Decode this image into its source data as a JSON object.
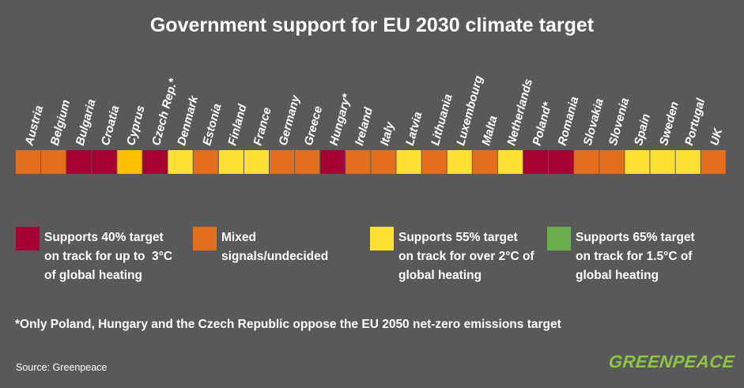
{
  "title": "Government support for EU 2030 climate target",
  "chart_data": {
    "type": "heatmap",
    "title": "Government support for EU 2030 climate target",
    "countries": [
      {
        "name": "Austria",
        "category": "mixed"
      },
      {
        "name": "Belgium",
        "category": "mixed"
      },
      {
        "name": "Bulgaria",
        "category": "40"
      },
      {
        "name": "Croatia",
        "category": "40"
      },
      {
        "name": "Cyprus",
        "category": "cyprus"
      },
      {
        "name": "Czech Rep.*",
        "category": "40"
      },
      {
        "name": "Denmark",
        "category": "55"
      },
      {
        "name": "Estonia",
        "category": "mixed"
      },
      {
        "name": "Finland",
        "category": "55"
      },
      {
        "name": "France",
        "category": "55"
      },
      {
        "name": "Germany",
        "category": "mixed"
      },
      {
        "name": "Greece",
        "category": "mixed"
      },
      {
        "name": "Hungary*",
        "category": "40"
      },
      {
        "name": "Ireland",
        "category": "mixed"
      },
      {
        "name": "Italy",
        "category": "mixed"
      },
      {
        "name": "Latvia",
        "category": "55"
      },
      {
        "name": "Lithuania",
        "category": "mixed"
      },
      {
        "name": "Luxembourg",
        "category": "55"
      },
      {
        "name": "Malta",
        "category": "mixed"
      },
      {
        "name": "Netherlands",
        "category": "55"
      },
      {
        "name": "Poland*",
        "category": "40"
      },
      {
        "name": "Romania",
        "category": "40"
      },
      {
        "name": "Slovakia",
        "category": "mixed"
      },
      {
        "name": "Slovenia",
        "category": "mixed"
      },
      {
        "name": "Spain",
        "category": "55"
      },
      {
        "name": "Sweden",
        "category": "55"
      },
      {
        "name": "Portugal",
        "category": "55"
      },
      {
        "name": "UK",
        "category": "mixed"
      }
    ],
    "colors": {
      "40": "#a50034",
      "mixed": "#e36f1e",
      "55": "#ffe135",
      "65": "#6ab04c",
      "cyprus": "#ffc000"
    }
  },
  "legend": [
    {
      "key": "40",
      "color": "#a50034",
      "text": "Supports 40% target\non track for up to  3°C\nof global heating"
    },
    {
      "key": "mixed",
      "color": "#e36f1e",
      "text": "Mixed\nsignals/undecided"
    },
    {
      "key": "55",
      "color": "#ffe135",
      "text": "Supports 55% target\non track for over 2°C of\nglobal heating"
    },
    {
      "key": "65",
      "color": "#6ab04c",
      "text": "Supports 65% target\non track for 1.5°C of\nglobal heating"
    }
  ],
  "footnote": "*Only Poland, Hungary and the Czech Republic oppose the EU 2050 net-zero emissions target",
  "source": "Source: Greenpeace",
  "logo": "GREENPEACE"
}
